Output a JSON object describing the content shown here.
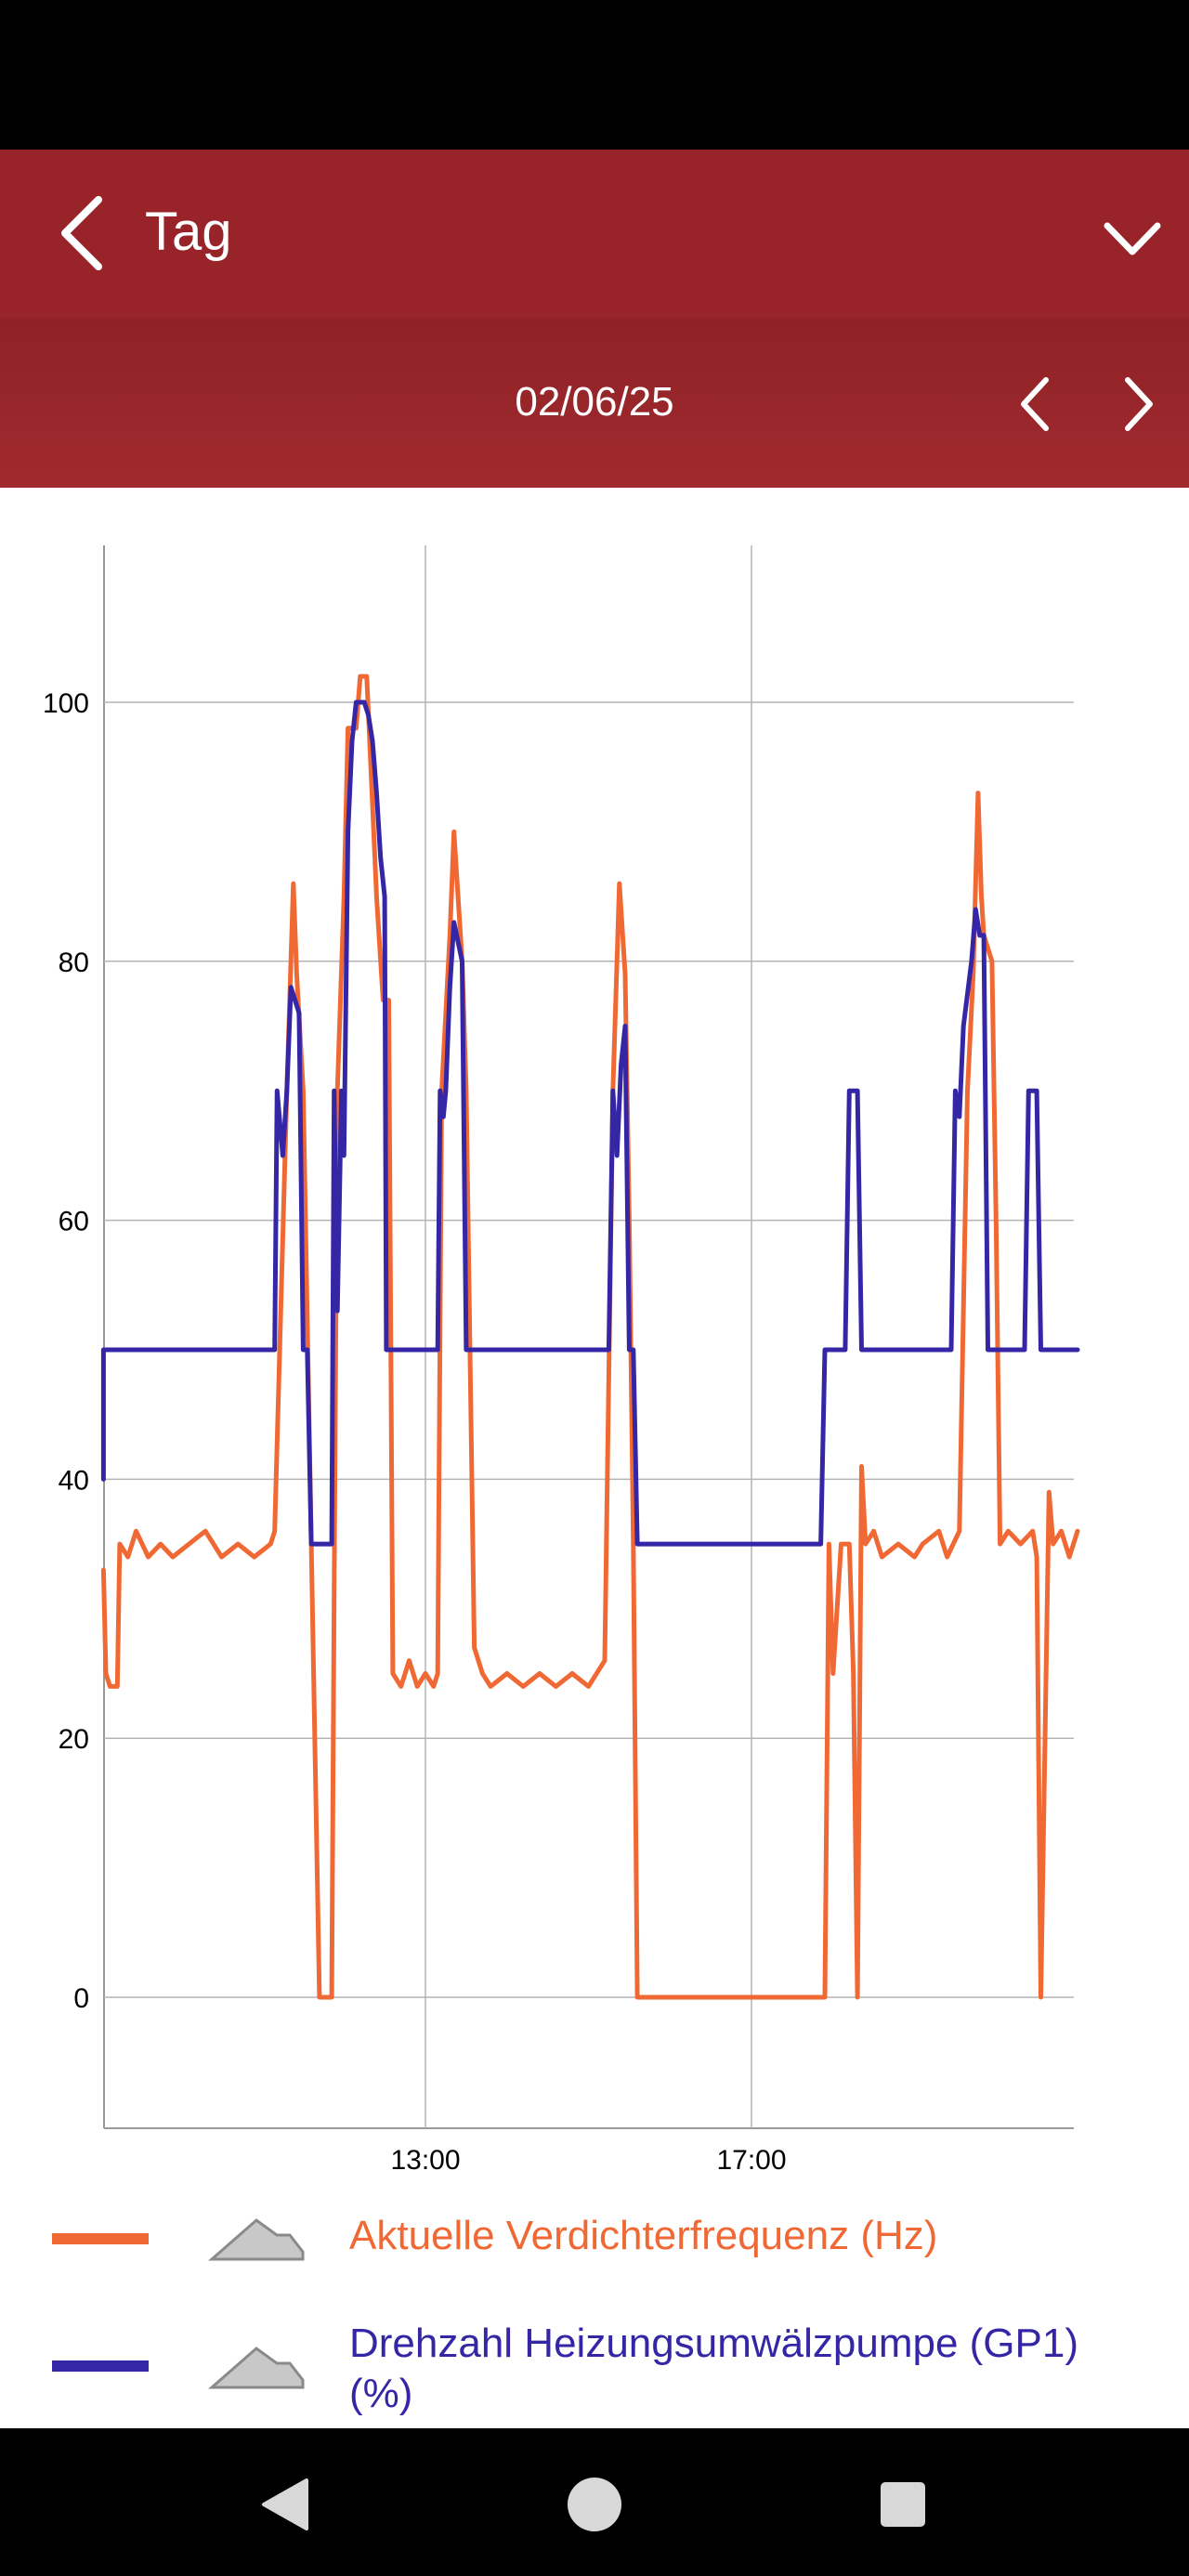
{
  "app_bar": {
    "title": "Tag",
    "back_icon": "chevron-left-icon",
    "menu_icon": "chevron-down-icon",
    "background": "#982429"
  },
  "date_bar": {
    "date": "02/06/25",
    "prev_icon": "chevron-left-icon",
    "next_icon": "chevron-right-icon"
  },
  "chart_data": {
    "type": "line",
    "x_ticks": [
      "13:00",
      "17:00"
    ],
    "y_ticks": [
      0,
      20,
      40,
      60,
      80,
      100
    ],
    "ylim": [
      -10,
      112
    ],
    "xlim_hours": [
      9.05,
      21.0
    ],
    "grid": true,
    "series": [
      {
        "name": "Aktuelle Verdichterfrequenz (Hz)",
        "color": "#f06934",
        "points": [
          [
            9.05,
            33
          ],
          [
            9.08,
            25
          ],
          [
            9.13,
            24
          ],
          [
            9.22,
            24
          ],
          [
            9.25,
            35
          ],
          [
            9.35,
            34
          ],
          [
            9.45,
            36
          ],
          [
            9.6,
            34
          ],
          [
            9.75,
            35
          ],
          [
            9.9,
            34
          ],
          [
            10.1,
            35
          ],
          [
            10.3,
            36
          ],
          [
            10.5,
            34
          ],
          [
            10.7,
            35
          ],
          [
            10.9,
            34
          ],
          [
            11.1,
            35
          ],
          [
            11.15,
            36
          ],
          [
            11.3,
            70
          ],
          [
            11.38,
            86
          ],
          [
            11.42,
            79
          ],
          [
            11.5,
            70
          ],
          [
            11.6,
            35
          ],
          [
            11.7,
            0
          ],
          [
            11.85,
            0
          ],
          [
            11.88,
            31
          ],
          [
            11.92,
            70
          ],
          [
            12.0,
            85
          ],
          [
            12.05,
            98
          ],
          [
            12.15,
            98
          ],
          [
            12.2,
            102
          ],
          [
            12.28,
            102
          ],
          [
            12.33,
            95
          ],
          [
            12.4,
            85
          ],
          [
            12.48,
            77
          ],
          [
            12.55,
            77
          ],
          [
            12.6,
            25
          ],
          [
            12.7,
            24
          ],
          [
            12.8,
            26
          ],
          [
            12.9,
            24
          ],
          [
            13.0,
            25
          ],
          [
            13.1,
            24
          ],
          [
            13.15,
            25
          ],
          [
            13.2,
            70
          ],
          [
            13.3,
            82
          ],
          [
            13.35,
            90
          ],
          [
            13.45,
            80
          ],
          [
            13.5,
            70
          ],
          [
            13.6,
            27
          ],
          [
            13.7,
            25
          ],
          [
            13.8,
            24
          ],
          [
            14.0,
            25
          ],
          [
            14.2,
            24
          ],
          [
            14.4,
            25
          ],
          [
            14.6,
            24
          ],
          [
            14.8,
            25
          ],
          [
            15.0,
            24
          ],
          [
            15.2,
            26
          ],
          [
            15.3,
            70
          ],
          [
            15.35,
            80
          ],
          [
            15.38,
            86
          ],
          [
            15.45,
            79
          ],
          [
            15.5,
            60
          ],
          [
            15.55,
            35
          ],
          [
            15.6,
            0
          ],
          [
            16.5,
            0
          ],
          [
            17.5,
            0
          ],
          [
            17.9,
            0
          ],
          [
            17.95,
            35
          ],
          [
            18.0,
            25
          ],
          [
            18.1,
            35
          ],
          [
            18.2,
            35
          ],
          [
            18.25,
            25
          ],
          [
            18.3,
            0
          ],
          [
            18.35,
            41
          ],
          [
            18.4,
            35
          ],
          [
            18.5,
            36
          ],
          [
            18.6,
            34
          ],
          [
            18.8,
            35
          ],
          [
            19.0,
            34
          ],
          [
            19.1,
            35
          ],
          [
            19.3,
            36
          ],
          [
            19.4,
            34
          ],
          [
            19.55,
            36
          ],
          [
            19.65,
            70
          ],
          [
            19.72,
            79
          ],
          [
            19.78,
            93
          ],
          [
            19.82,
            85
          ],
          [
            19.85,
            82
          ],
          [
            19.95,
            80
          ],
          [
            20.0,
            60
          ],
          [
            20.05,
            35
          ],
          [
            20.15,
            36
          ],
          [
            20.3,
            35
          ],
          [
            20.45,
            36
          ],
          [
            20.5,
            34
          ],
          [
            20.55,
            0
          ],
          [
            20.65,
            39
          ],
          [
            20.7,
            35
          ],
          [
            20.8,
            36
          ],
          [
            20.9,
            34
          ],
          [
            21.0,
            36
          ]
        ]
      },
      {
        "name": "Drehzahl Heizungsumwälzpumpe (GP1)  (%)",
        "color": "#3526a6",
        "points": [
          [
            9.05,
            40
          ],
          [
            9.05,
            50
          ],
          [
            11.1,
            50
          ],
          [
            11.15,
            50
          ],
          [
            11.18,
            70
          ],
          [
            11.25,
            65
          ],
          [
            11.3,
            70
          ],
          [
            11.35,
            78
          ],
          [
            11.45,
            76
          ],
          [
            11.5,
            50
          ],
          [
            11.55,
            50
          ],
          [
            11.6,
            35
          ],
          [
            11.75,
            35
          ],
          [
            11.8,
            35
          ],
          [
            11.85,
            35
          ],
          [
            11.88,
            70
          ],
          [
            11.92,
            53
          ],
          [
            11.97,
            70
          ],
          [
            12.0,
            65
          ],
          [
            12.05,
            90
          ],
          [
            12.1,
            97
          ],
          [
            12.15,
            100
          ],
          [
            12.25,
            100
          ],
          [
            12.3,
            99
          ],
          [
            12.35,
            97
          ],
          [
            12.4,
            93
          ],
          [
            12.45,
            88
          ],
          [
            12.5,
            85
          ],
          [
            12.52,
            50
          ],
          [
            13.15,
            50
          ],
          [
            13.18,
            70
          ],
          [
            13.22,
            68
          ],
          [
            13.25,
            70
          ],
          [
            13.3,
            78
          ],
          [
            13.35,
            83
          ],
          [
            13.45,
            80
          ],
          [
            13.5,
            50
          ],
          [
            15.0,
            50
          ],
          [
            15.25,
            50
          ],
          [
            15.3,
            70
          ],
          [
            15.35,
            65
          ],
          [
            15.4,
            72
          ],
          [
            15.45,
            75
          ],
          [
            15.5,
            50
          ],
          [
            15.55,
            50
          ],
          [
            15.6,
            35
          ],
          [
            17.0,
            35
          ],
          [
            17.85,
            35
          ],
          [
            17.9,
            50
          ],
          [
            18.1,
            50
          ],
          [
            18.15,
            50
          ],
          [
            18.2,
            70
          ],
          [
            18.3,
            70
          ],
          [
            18.35,
            50
          ],
          [
            19.4,
            50
          ],
          [
            19.45,
            50
          ],
          [
            19.5,
            70
          ],
          [
            19.55,
            68
          ],
          [
            19.6,
            75
          ],
          [
            19.7,
            80
          ],
          [
            19.75,
            84
          ],
          [
            19.8,
            82
          ],
          [
            19.85,
            82
          ],
          [
            19.9,
            50
          ],
          [
            20.35,
            50
          ],
          [
            20.4,
            70
          ],
          [
            20.5,
            70
          ],
          [
            20.55,
            50
          ],
          [
            21.0,
            50
          ]
        ]
      }
    ]
  },
  "legend": [
    {
      "label": "Aktuelle Verdichterfrequenz (Hz)",
      "color": "#f06934",
      "icon": "area-chart-icon"
    },
    {
      "label": "Drehzahl Heizungsumwälzpumpe (GP1)  (%)",
      "color": "#3526a6",
      "icon": "area-chart-icon"
    }
  ],
  "nav_bar": {
    "back_icon": "triangle-back-icon",
    "home_icon": "circle-home-icon",
    "recents_icon": "square-recents-icon"
  }
}
